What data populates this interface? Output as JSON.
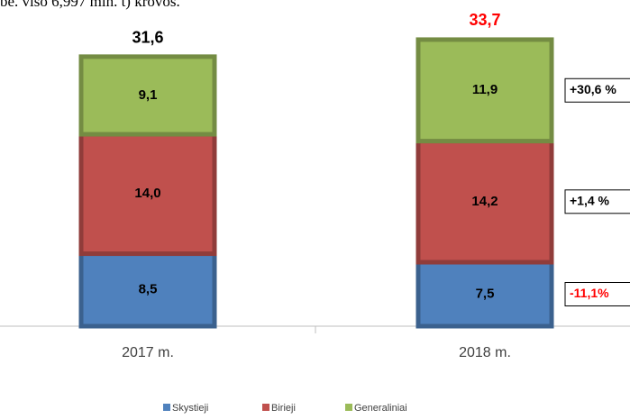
{
  "header_text": "be. viso 6,997 mln. t) krovos.",
  "chart_data": {
    "type": "stacked_bar",
    "categories": [
      "2017 m.",
      "2018 m."
    ],
    "series": [
      {
        "name": "Skystieji",
        "color": "#4f81bd",
        "values": [
          8.5,
          7.5
        ],
        "value_labels": [
          "8,5",
          "7,5"
        ]
      },
      {
        "name": "Birieji",
        "color": "#c0504d",
        "values": [
          14.0,
          14.2
        ],
        "value_labels": [
          "14,0",
          "14,2"
        ]
      },
      {
        "name": "Generaliniai",
        "color": "#9bbb59",
        "values": [
          9.1,
          11.9
        ],
        "value_labels": [
          "9,1",
          "11,9"
        ]
      }
    ],
    "totals": [
      31.6,
      33.7
    ],
    "total_labels": [
      "31,6",
      "33,7"
    ],
    "total_colors": [
      "#000000",
      "#ff0000"
    ],
    "annotations": [
      {
        "text": "-11,1%",
        "color": "#ff0000"
      },
      {
        "text": "+1,4 %",
        "color": "#000000"
      },
      {
        "text": "+30,6 %",
        "color": "#000000"
      }
    ]
  }
}
